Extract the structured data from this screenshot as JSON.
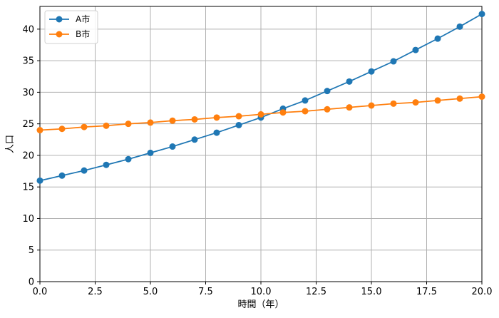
{
  "chart_data": {
    "type": "line",
    "title": "",
    "xlabel": "時間（年）",
    "ylabel": "人口",
    "xlim": [
      0,
      20
    ],
    "ylim": [
      0,
      43.6
    ],
    "x_ticks": [
      0.0,
      2.5,
      5.0,
      7.5,
      10.0,
      12.5,
      15.0,
      17.5,
      20.0
    ],
    "x_tick_labels": [
      "0.0",
      "2.5",
      "5.0",
      "7.5",
      "10.0",
      "12.5",
      "15.0",
      "17.5",
      "20.0"
    ],
    "y_ticks": [
      0,
      5,
      10,
      15,
      20,
      25,
      30,
      35,
      40
    ],
    "y_tick_labels": [
      "0",
      "5",
      "10",
      "15",
      "20",
      "25",
      "30",
      "35",
      "40"
    ],
    "grid": true,
    "legend_position": "top-left",
    "x": [
      0,
      1,
      2,
      3,
      4,
      5,
      6,
      7,
      8,
      9,
      10,
      11,
      12,
      13,
      14,
      15,
      16,
      17,
      18,
      19,
      20
    ],
    "series": [
      {
        "name": "A市",
        "color": "#1f77b4",
        "values": [
          16.0,
          16.8,
          17.6,
          18.5,
          19.4,
          20.4,
          21.4,
          22.5,
          23.6,
          24.8,
          26.0,
          27.4,
          28.7,
          30.2,
          31.7,
          33.3,
          34.9,
          36.7,
          38.5,
          40.4,
          42.4
        ]
      },
      {
        "name": "B市",
        "color": "#ff7f0e",
        "values": [
          24.0,
          24.2,
          24.5,
          24.7,
          25.0,
          25.2,
          25.5,
          25.7,
          26.0,
          26.2,
          26.5,
          26.8,
          27.0,
          27.3,
          27.6,
          27.9,
          28.2,
          28.4,
          28.7,
          29.0,
          29.3
        ]
      }
    ]
  }
}
